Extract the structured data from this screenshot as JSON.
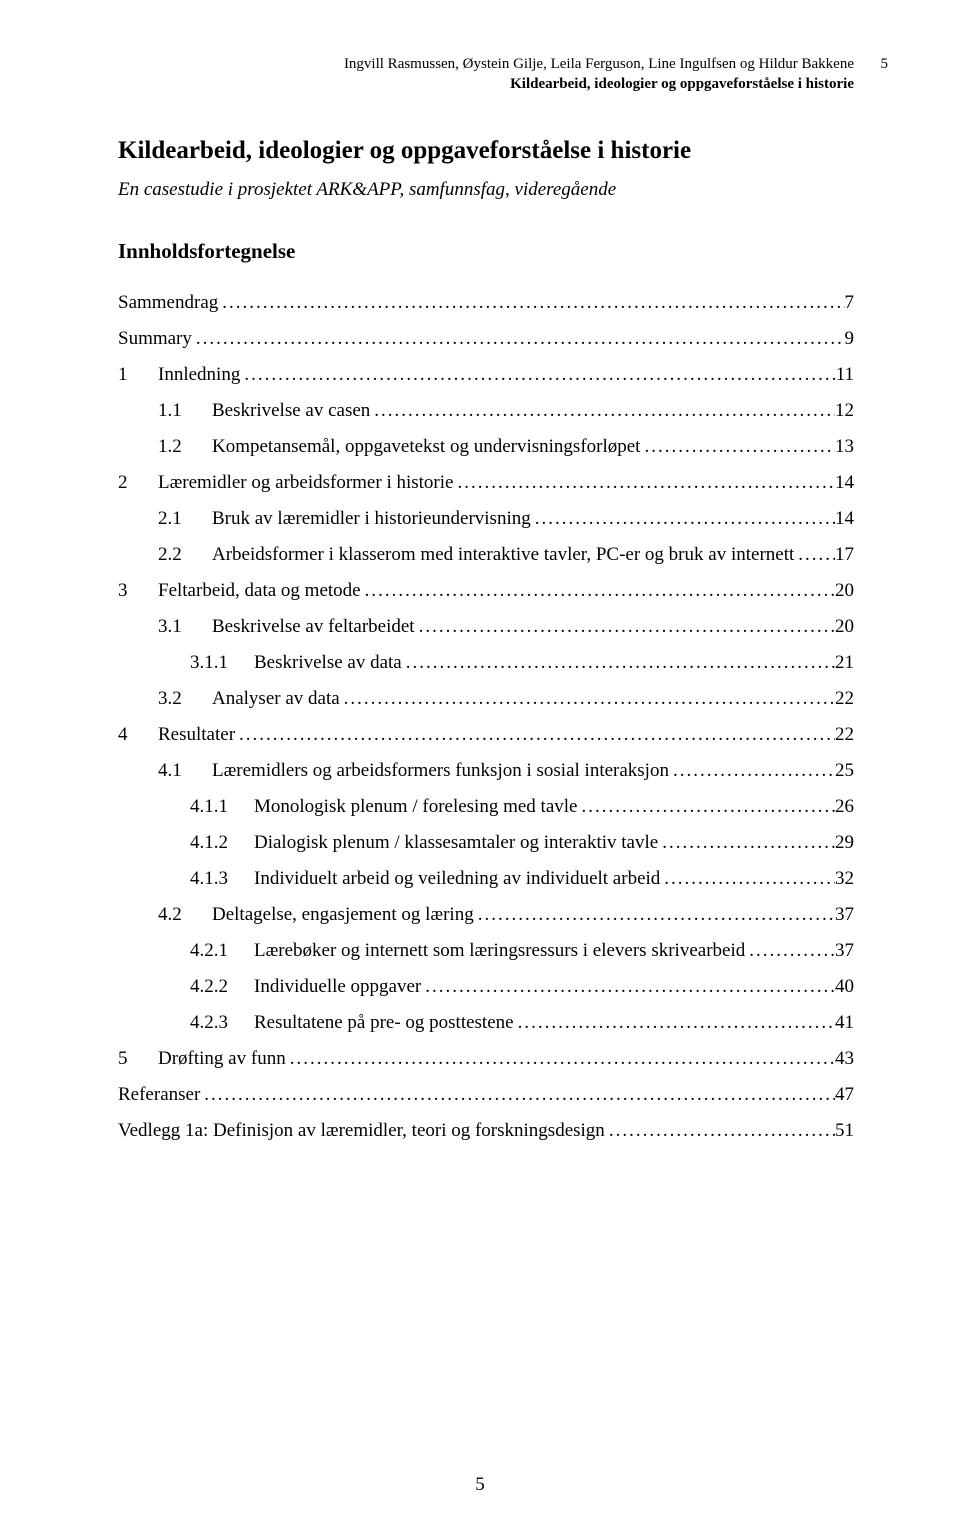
{
  "header": {
    "authors": "Ingvill Rasmussen, Øystein Gilje, Leila Ferguson, Line Ingulfsen og Hildur Bakkene",
    "subtitle": "Kildearbeid, ideologier og oppgaveforståelse i historie",
    "page_top": "5"
  },
  "title": "Kildearbeid, ideologier og oppgaveforståelse i historie",
  "subtitle_line": "En casestudie i prosjektet ARK&APP, samfunnsfag, videregående",
  "toc_heading": "Innholdsfortegnelse",
  "toc": [
    {
      "level": 0,
      "num": "",
      "label": "Sammendrag",
      "page": "7"
    },
    {
      "level": 0,
      "num": "",
      "label": "Summary",
      "page": "9"
    },
    {
      "level": 1,
      "num": "1",
      "label": "Innledning",
      "page": "11"
    },
    {
      "level": 2,
      "num": "1.1",
      "label": "Beskrivelse av casen",
      "page": "12"
    },
    {
      "level": 2,
      "num": "1.2",
      "label": "Kompetansemål, oppgavetekst og undervisningsforløpet",
      "page": "13"
    },
    {
      "level": 1,
      "num": "2",
      "label": "Læremidler og arbeidsformer i historie",
      "page": "14"
    },
    {
      "level": 2,
      "num": "2.1",
      "label": "Bruk av læremidler i historieundervisning",
      "page": "14"
    },
    {
      "level": 2,
      "num": "2.2",
      "label": "Arbeidsformer i klasserom med interaktive tavler, PC-er og bruk av internett",
      "page": "17"
    },
    {
      "level": 1,
      "num": "3",
      "label": "Feltarbeid, data og metode",
      "page": "20"
    },
    {
      "level": 2,
      "num": "3.1",
      "label": "Beskrivelse av feltarbeidet",
      "page": "20"
    },
    {
      "level": 3,
      "num": "3.1.1",
      "label": "Beskrivelse av data",
      "page": "21"
    },
    {
      "level": 2,
      "num": "3.2",
      "label": "Analyser av data",
      "page": "22"
    },
    {
      "level": 1,
      "num": "4",
      "label": "Resultater",
      "page": "22"
    },
    {
      "level": 2,
      "num": "4.1",
      "label": "Læremidlers og arbeidsformers funksjon i sosial interaksjon",
      "page": "25"
    },
    {
      "level": 3,
      "num": "4.1.1",
      "label": "Monologisk plenum / forelesing med tavle",
      "page": "26"
    },
    {
      "level": 3,
      "num": "4.1.2",
      "label": "Dialogisk plenum / klassesamtaler og interaktiv tavle",
      "page": "29"
    },
    {
      "level": 3,
      "num": "4.1.3",
      "label": "Individuelt arbeid og veiledning av individuelt arbeid",
      "page": "32"
    },
    {
      "level": 2,
      "num": "4.2",
      "label": "Deltagelse, engasjement og læring",
      "page": "37"
    },
    {
      "level": 3,
      "num": "4.2.1",
      "label": "Lærebøker og internett som læringsressurs i elevers skrivearbeid",
      "page": "37"
    },
    {
      "level": 3,
      "num": "4.2.2",
      "label": "Individuelle oppgaver",
      "page": "40"
    },
    {
      "level": 3,
      "num": "4.2.3",
      "label": "Resultatene på pre- og posttestene",
      "page": "41"
    },
    {
      "level": 1,
      "num": "5",
      "label": "Drøfting av funn",
      "page": "43"
    },
    {
      "level": 0,
      "num": "",
      "label": "Referanser",
      "page": "47"
    },
    {
      "level": 0,
      "num": "",
      "label": "Vedlegg 1a: Definisjon av læremidler, teori og forskningsdesign",
      "page": "51"
    }
  ],
  "footer_page": "5"
}
